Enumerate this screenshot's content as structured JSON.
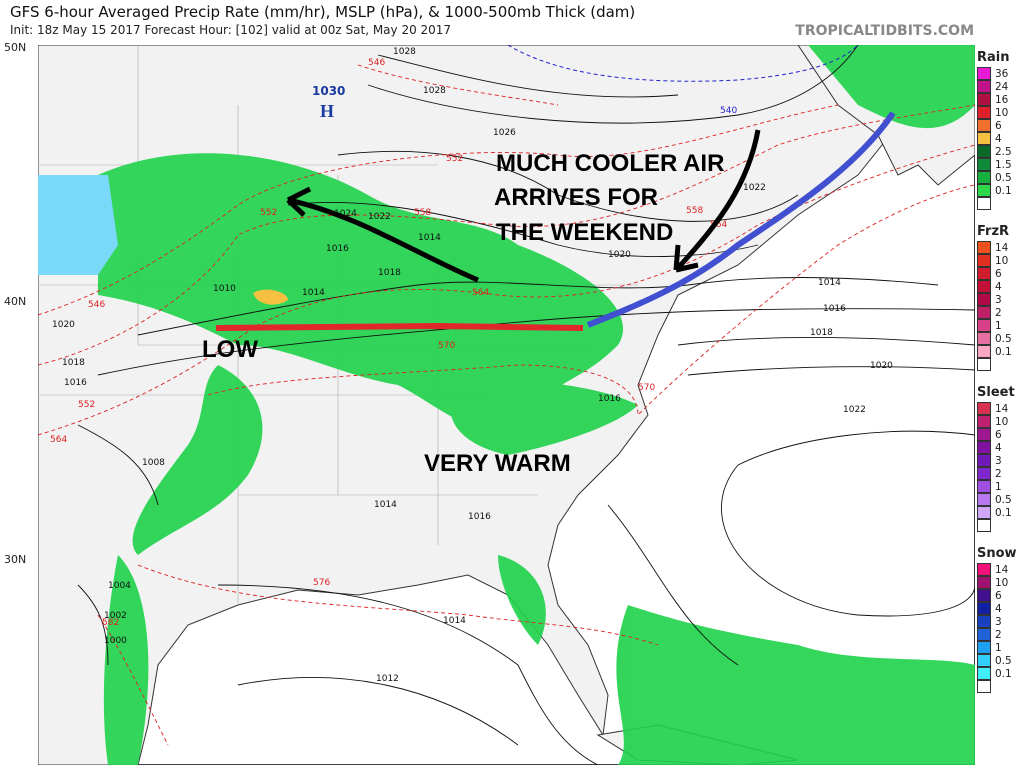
{
  "header": {
    "title": "GFS 6-hour Averaged Precip Rate (mm/hr), MSLP (hPa), & 1000-500mb Thick (dam)",
    "subtitle": "Init: 18z May 15 2017   Forecast Hour: [102]   valid at 00z Sat, May 20 2017",
    "brand": "TROPICALTIDBITS.COM"
  },
  "latitudes": [
    "50N",
    "40N",
    "30N"
  ],
  "annotations": {
    "line1": "MUCH COOLER AIR",
    "line2": "ARRIVES FOR",
    "line3": "THE WEEKEND",
    "low": "LOW",
    "warm": "VERY WARM",
    "high_value": "1030",
    "high_letter": "H"
  },
  "isobars": [
    "1028",
    "1028",
    "1026",
    "1024",
    "1022",
    "1022",
    "1020",
    "1018",
    "1016",
    "1016",
    "1014",
    "1014",
    "1016",
    "1018",
    "1020",
    "1022",
    "1010",
    "1014",
    "1020",
    "1018",
    "1016",
    "1014",
    "1016",
    "1014",
    "1012",
    "1008",
    "1004",
    "1002",
    "1000"
  ],
  "thickness": [
    "546",
    "546",
    "552",
    "552",
    "558",
    "558",
    "564",
    "564",
    "570",
    "570",
    "576",
    "582",
    "564",
    "540",
    "552"
  ],
  "legend": {
    "rain": {
      "title": "Rain",
      "levels": [
        "36",
        "24",
        "16",
        "10",
        "6",
        "4",
        "2.5",
        "1.5",
        "0.5",
        "0.1"
      ],
      "colors": [
        "#e81ad8",
        "#c0148a",
        "#b01040",
        "#e0202a",
        "#f07030",
        "#f8c040",
        "#0a6a28",
        "#108a38",
        "#16b040",
        "#2ed84a"
      ]
    },
    "frzr": {
      "title": "FrzR",
      "levels": [
        "14",
        "10",
        "6",
        "4",
        "3",
        "2",
        "1",
        "0.5",
        "0.1"
      ],
      "colors": [
        "#f0501a",
        "#e03020",
        "#d01c2a",
        "#c01038",
        "#b00a48",
        "#c02068",
        "#d84088",
        "#e870a0",
        "#f8a8c0"
      ]
    },
    "sleet": {
      "title": "Sleet",
      "levels": [
        "14",
        "10",
        "6",
        "4",
        "3",
        "2",
        "1",
        "0.5",
        "0.1"
      ],
      "colors": [
        "#d83050",
        "#c02070",
        "#a01890",
        "#8010a0",
        "#7018b8",
        "#8028d0",
        "#a050e0",
        "#b878f0",
        "#d0a8f8"
      ]
    },
    "snow": {
      "title": "Snow",
      "levels": [
        "14",
        "10",
        "6",
        "4",
        "3",
        "2",
        "1",
        "0.5",
        "0.1"
      ],
      "colors": [
        "#f0107a",
        "#a01070",
        "#401090",
        "#1020a0",
        "#1840c0",
        "#2060d8",
        "#20a0f0",
        "#30d0f8",
        "#40f0f8"
      ]
    }
  }
}
